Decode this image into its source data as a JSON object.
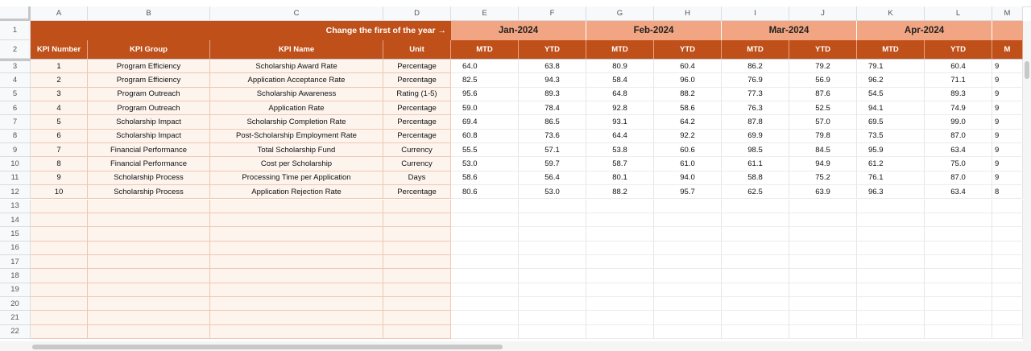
{
  "column_headers": [
    "A",
    "B",
    "C",
    "D",
    "E",
    "F",
    "G",
    "H",
    "I",
    "J",
    "K",
    "L",
    "M"
  ],
  "row_numbers": [
    "1",
    "2",
    "3",
    "4",
    "5",
    "6",
    "7",
    "8",
    "9",
    "10",
    "11",
    "12",
    "13",
    "14",
    "15",
    "16",
    "17",
    "18",
    "19",
    "20",
    "21",
    "22"
  ],
  "header_row1": {
    "note": "Change the first of the year →",
    "months": [
      "Jan-2024",
      "Feb-2024",
      "Mar-2024",
      "Apr-2024"
    ]
  },
  "header_row2": [
    "KPI Number",
    "KPI Group",
    "KPI Name",
    "Unit",
    "MTD",
    "YTD",
    "MTD",
    "YTD",
    "MTD",
    "YTD",
    "MTD",
    "YTD",
    "M"
  ],
  "rows": [
    [
      "1",
      "Program Efficiency",
      "Scholarship Award Rate",
      "Percentage",
      "64.0",
      "63.8",
      "80.9",
      "60.4",
      "86.2",
      "79.2",
      "79.1",
      "60.4",
      "9"
    ],
    [
      "2",
      "Program Efficiency",
      "Application Acceptance Rate",
      "Percentage",
      "82.5",
      "94.3",
      "58.4",
      "96.0",
      "76.9",
      "56.9",
      "96.2",
      "71.1",
      "9"
    ],
    [
      "3",
      "Program Outreach",
      "Scholarship Awareness",
      "Rating (1-5)",
      "95.6",
      "89.3",
      "64.8",
      "88.2",
      "77.3",
      "87.6",
      "54.5",
      "89.3",
      "9"
    ],
    [
      "4",
      "Program Outreach",
      "Application Rate",
      "Percentage",
      "59.0",
      "78.4",
      "92.8",
      "58.6",
      "76.3",
      "52.5",
      "94.1",
      "74.9",
      "9"
    ],
    [
      "5",
      "Scholarship Impact",
      "Scholarship Completion Rate",
      "Percentage",
      "69.4",
      "86.5",
      "93.1",
      "64.2",
      "87.8",
      "57.0",
      "69.5",
      "99.0",
      "9"
    ],
    [
      "6",
      "Scholarship Impact",
      "Post-Scholarship Employment Rate",
      "Percentage",
      "60.8",
      "73.6",
      "64.4",
      "92.2",
      "69.9",
      "79.8",
      "73.5",
      "87.0",
      "9"
    ],
    [
      "7",
      "Financial Performance",
      "Total Scholarship Fund",
      "Currency",
      "55.5",
      "57.1",
      "53.8",
      "60.6",
      "98.5",
      "84.5",
      "95.9",
      "63.4",
      "9"
    ],
    [
      "8",
      "Financial Performance",
      "Cost per Scholarship",
      "Currency",
      "53.0",
      "59.7",
      "58.7",
      "61.0",
      "61.1",
      "94.9",
      "61.2",
      "75.0",
      "9"
    ],
    [
      "9",
      "Scholarship Process",
      "Processing Time per Application",
      "Days",
      "58.6",
      "56.4",
      "80.1",
      "94.0",
      "58.8",
      "75.2",
      "76.1",
      "87.0",
      "9"
    ],
    [
      "10",
      "Scholarship Process",
      "Application Rejection Rate",
      "Percentage",
      "80.6",
      "53.0",
      "88.2",
      "95.7",
      "62.5",
      "63.9",
      "96.3",
      "63.4",
      "8"
    ]
  ]
}
